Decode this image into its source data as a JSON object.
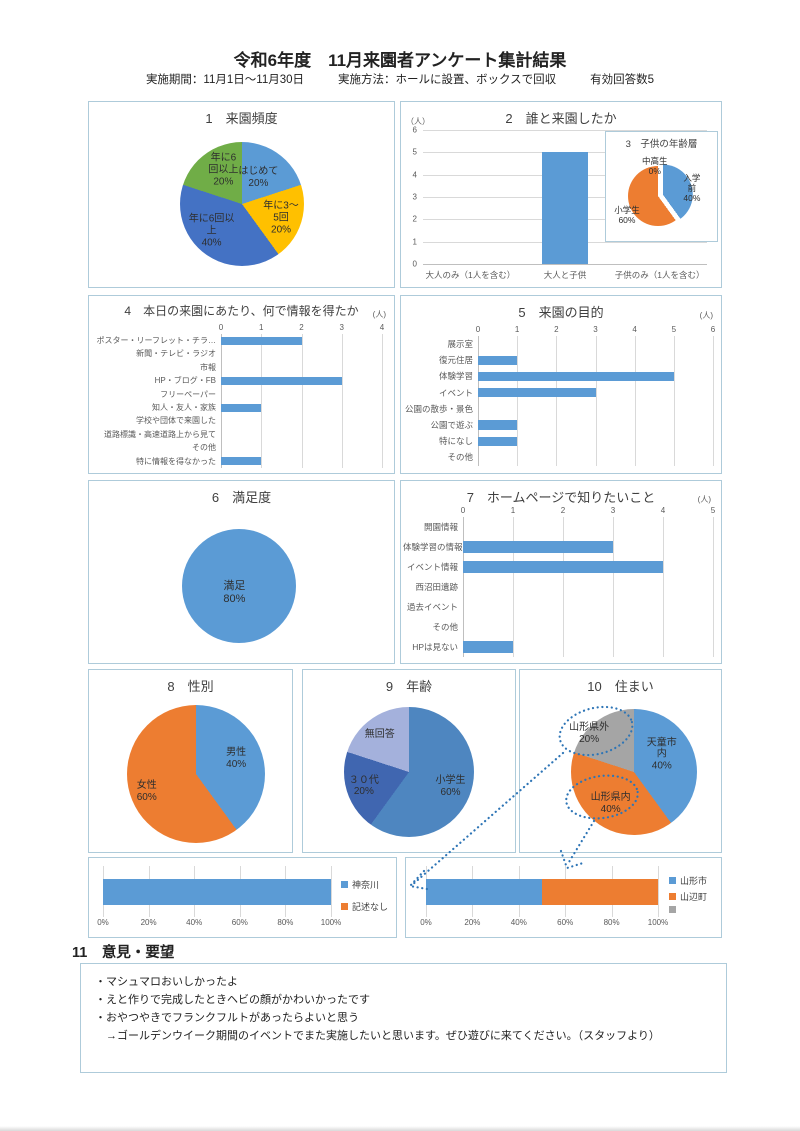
{
  "page": {
    "title": "令和6年度　11月来園者アンケート集計結果",
    "period": "実施期間：11月1日～11月30日",
    "method": "実施方法：ホールに設置、ボックスで回収",
    "responses": "有効回答数5"
  },
  "colors": {
    "bar_blue": "#5B9BD5",
    "orange": "#ED7D31",
    "gray": "#A5A5A5",
    "yellow": "#FFC000",
    "dark_blue": "#4472C4",
    "green": "#70AD47",
    "panel_border": "#AECBDA",
    "grid": "#D9D9D9",
    "annotation_blue": "#2E75B6"
  },
  "chart_data": [
    {
      "id": "c1",
      "type": "pie",
      "title": "1　来園頻度",
      "slices": [
        {
          "label": "はじめて",
          "value": 20,
          "text": "はじめて\n20%",
          "color": "#5B9BD5"
        },
        {
          "label": "年に3～5回",
          "value": 20,
          "text": "年に3～\n5回\n20%",
          "color": "#FFC000"
        },
        {
          "label": "年に6回以上",
          "value": 40,
          "text": "年に6回以\n上\n40%",
          "color": "#4472C4"
        },
        {
          "label": "年に6回以上",
          "value": 20,
          "text": "年に6\n回以上\n20%",
          "color": "#70AD47"
        }
      ]
    },
    {
      "id": "c2",
      "type": "bar",
      "title": "2　誰と来園したか",
      "unit": "（人）",
      "ylim": [
        0,
        6
      ],
      "categories": [
        "大人のみ（1人を含む）",
        "大人と子供",
        "子供のみ（1人を含む）"
      ],
      "values": [
        0,
        5,
        0
      ],
      "bar_color": "#5B9BD5"
    },
    {
      "id": "c3",
      "type": "pie",
      "title": "3　子供の年齢層",
      "slices": [
        {
          "label": "入学前",
          "value": 40,
          "text": "入学前\n40%",
          "color": "#5B9BD5",
          "explode": true
        },
        {
          "label": "小学生",
          "value": 60,
          "text": "小学生\n60%",
          "color": "#ED7D31"
        },
        {
          "label": "中高生",
          "value": 0,
          "text": "中高生\n0%",
          "color": "#A5A5A5"
        }
      ]
    },
    {
      "id": "c4",
      "type": "hbar",
      "title": "4　本日の来園にあたり、何で情報を得たか",
      "unit": "(人)",
      "xlim": [
        0,
        4
      ],
      "categories": [
        "ポスター・リーフレット・チラ…",
        "新聞・テレビ・ラジオ",
        "市報",
        "HP・ブログ・FB",
        "フリーペーパー",
        "知人・友人・家族",
        "学校や団体で来園した",
        "道路標識・高速道路上から見て",
        "その他",
        "特に情報を得なかった"
      ],
      "values": [
        2,
        0,
        0,
        3,
        0,
        1,
        0,
        0,
        0,
        1
      ],
      "bar_color": "#5B9BD5"
    },
    {
      "id": "c5",
      "type": "hbar",
      "title": "5　来園の目的",
      "unit": "(人)",
      "xlim": [
        0,
        6
      ],
      "categories": [
        "展示室",
        "復元住居",
        "体験学習",
        "イベント",
        "公園の散歩・景色",
        "公園で遊ぶ",
        "特になし",
        "その他"
      ],
      "values": [
        0,
        1,
        5,
        3,
        0,
        1,
        1,
        0
      ],
      "bar_color": "#5B9BD5"
    },
    {
      "id": "c6",
      "type": "pie",
      "title": "6　満足度",
      "slices": [
        {
          "label": "満足",
          "value": 80,
          "text": "満足\n80%",
          "color": "#5B9BD5"
        }
      ]
    },
    {
      "id": "c7",
      "type": "hbar",
      "title": "7　ホームページで知りたいこと",
      "unit": "(人)",
      "xlim": [
        0,
        5
      ],
      "categories": [
        "開園情報",
        "体験学習の情報",
        "イベント情報",
        "西沼田遺跡",
        "過去イベント",
        "その他",
        "HPは見ない"
      ],
      "values": [
        0,
        3,
        4,
        0,
        0,
        0,
        1
      ],
      "bar_color": "#5B9BD5"
    },
    {
      "id": "c8",
      "type": "pie",
      "title": "8　性別",
      "slices": [
        {
          "label": "男性",
          "value": 40,
          "text": "男性\n40%",
          "color": "#5B9BD5"
        },
        {
          "label": "女性",
          "value": 60,
          "text": "女性\n60%",
          "color": "#ED7D31"
        }
      ]
    },
    {
      "id": "c9",
      "type": "pie",
      "title": "9　年齢",
      "slices": [
        {
          "label": "小学生",
          "value": 60,
          "text": "小学生\n60%",
          "color": "#4E86C0"
        },
        {
          "label": "３０代",
          "value": 20,
          "text": "３０代\n20%",
          "color": "#4066B0"
        },
        {
          "label": "無回答",
          "value": 20,
          "text": "無回答",
          "color": "#A4B1DC"
        }
      ]
    },
    {
      "id": "c10",
      "type": "pie",
      "title": "10　住まい",
      "slices": [
        {
          "label": "天童市内",
          "value": 40,
          "text": "天童市\n内\n40%",
          "color": "#5B9BD5"
        },
        {
          "label": "山形県内",
          "value": 40,
          "text": "山形県内\n40%",
          "color": "#ED7D31"
        },
        {
          "label": "山形県外",
          "value": 20,
          "text": "山形県外\n20%",
          "color": "#A5A5A5"
        }
      ]
    },
    {
      "id": "c11",
      "type": "stacked_hbar",
      "title": "",
      "xticks": [
        "0%",
        "20%",
        "40%",
        "60%",
        "80%",
        "100%"
      ],
      "series": [
        {
          "name": "神奈川",
          "value": 100,
          "color": "#5B9BD5"
        },
        {
          "name": "記述なし",
          "value": 0,
          "color": "#ED7D31"
        }
      ]
    },
    {
      "id": "c12",
      "type": "stacked_hbar",
      "title": "",
      "xticks": [
        "0%",
        "20%",
        "40%",
        "60%",
        "80%",
        "100%"
      ],
      "series": [
        {
          "name": "山形市",
          "value": 50,
          "color": "#5B9BD5"
        },
        {
          "name": "山辺町",
          "value": 50,
          "color": "#ED7D31"
        },
        {
          "name": "",
          "value": 0,
          "color": "#A5A5A5"
        }
      ]
    }
  ],
  "comments": {
    "heading": "11　意見・要望",
    "lines": [
      "・マシュマロおいしかったよ",
      "・えと作りで完成したときヘビの顔がかわいかったです",
      "・おやつやきでフランクフルトがあったらよいと思う",
      "　→ゴールデンウイーク期間のイベントでまた実施したいと思います。ぜひ遊びに来てください。（スタッフより）"
    ]
  },
  "callouts": [
    {
      "from_slice": "山形県外",
      "to_chart": "c11"
    },
    {
      "from_slice": "山形県内",
      "to_chart": "c12"
    }
  ]
}
